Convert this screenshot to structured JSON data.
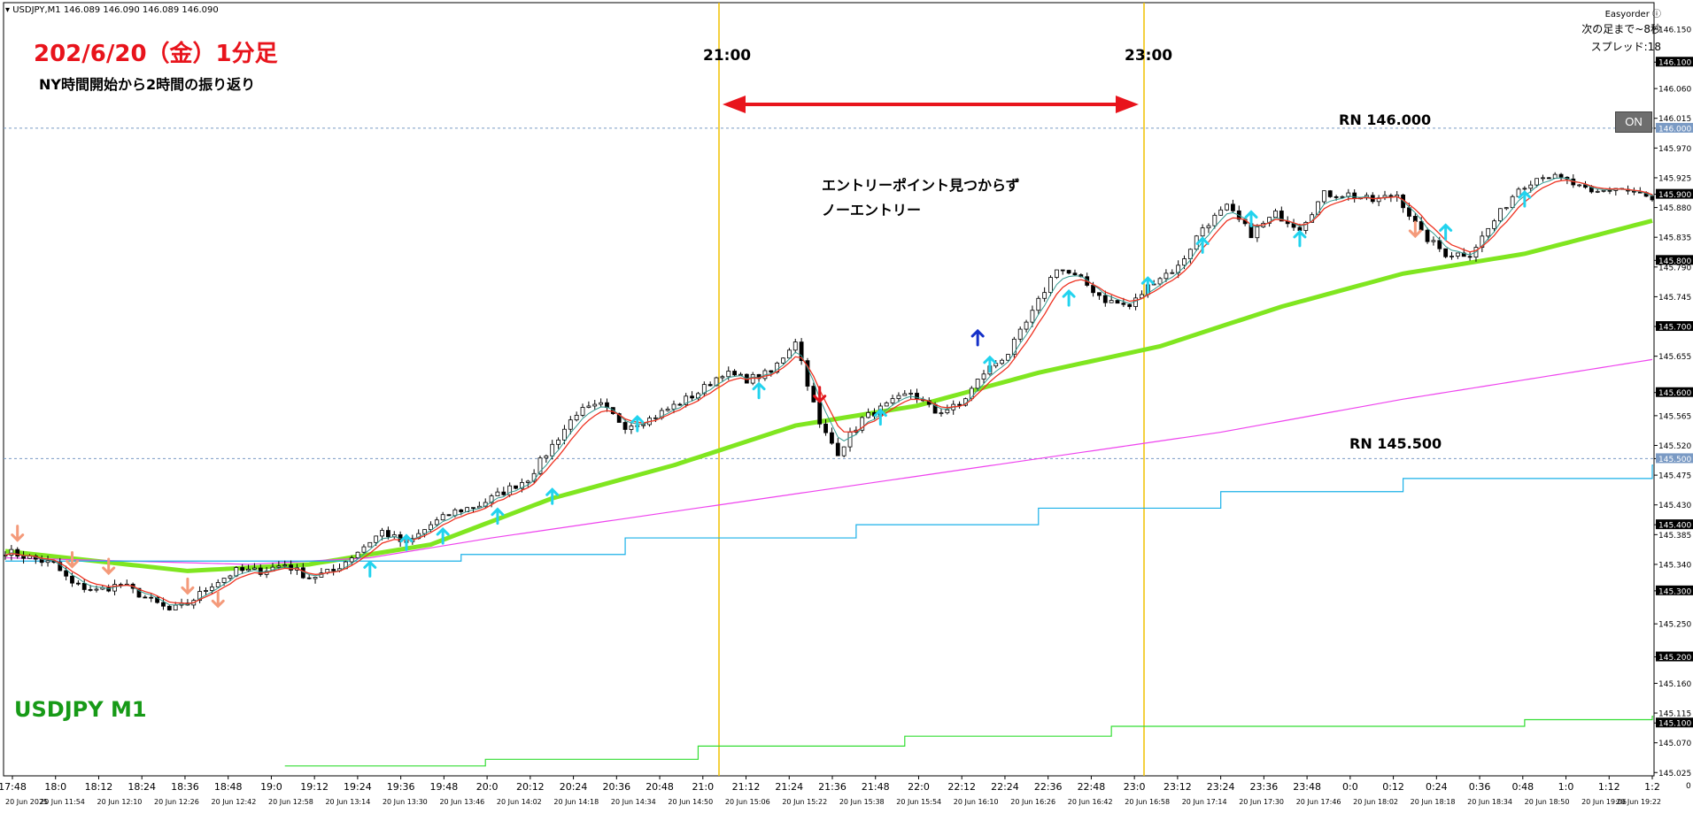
{
  "header": {
    "symbol_info": "USDJPY,M1",
    "ohlc": "146.089 146.090 146.089 146.090"
  },
  "annotations": {
    "title": "202/6/20（金）1分足",
    "subtitle": "NY時間開始から2時間の振り返り",
    "hour_1": "21:00",
    "hour_2": "23:00",
    "note_line1": "エントリーポイント見つからず",
    "note_line2": "ノーエントリー",
    "rn_upper": "RN 146.000",
    "rn_lower": "RN 145.500",
    "symbol_label": "USDJPY M1"
  },
  "top_right": {
    "easyorder": "Easyorder",
    "countdown": "次の足まで~8秒",
    "spread": "スプレッド:18",
    "on_button": "ON"
  },
  "colors": {
    "title": "#e8141c",
    "symbol_label": "#179a17",
    "ma_thick": "#80e620",
    "ma_magenta": "#ee44ee",
    "ma_cyan": "#1ab0e8",
    "ma_green_step": "#33dd33",
    "ma_red": "#ee3322",
    "ma_teal": "#33998f",
    "vline": "#f0c000",
    "arrow": "#e8141c",
    "up_signal": "#22d3ee",
    "down_signal": "#f49a7a"
  },
  "chart_data": {
    "type": "candlestick",
    "symbol": "USDJPY",
    "timeframe": "M1",
    "ylim": [
      145.02,
      146.19
    ],
    "y_ticks": [
      "146.150",
      "146.100",
      "146.060",
      "146.015",
      "146.000",
      "145.970",
      "145.925",
      "145.900",
      "145.880",
      "145.835",
      "145.800",
      "145.790",
      "145.745",
      "145.700",
      "145.655",
      "145.600",
      "145.565",
      "145.520",
      "145.500",
      "145.475",
      "145.430",
      "145.400",
      "145.385",
      "145.340",
      "145.300",
      "145.250",
      "145.200",
      "145.160",
      "145.115",
      "145.100",
      "145.070",
      "145.025"
    ],
    "y_tick_highlighted": [
      "146.100",
      "146.000",
      "145.900",
      "145.800",
      "145.700",
      "145.600",
      "145.500",
      "145.400",
      "145.300",
      "145.200",
      "145.100"
    ],
    "x_ticks_time": [
      "17:48",
      "18:0",
      "18:12",
      "18:24",
      "18:36",
      "18:48",
      "19:0",
      "19:12",
      "19:24",
      "19:36",
      "19:48",
      "20:0",
      "20:12",
      "20:24",
      "20:36",
      "20:48",
      "21:0",
      "21:12",
      "21:24",
      "21:36",
      "21:48",
      "22:0",
      "22:12",
      "22:24",
      "22:36",
      "22:48",
      "23:0",
      "23:12",
      "23:24",
      "23:36",
      "23:48",
      "0:0",
      "0:12",
      "0:24",
      "0:36",
      "0:48",
      "1:0",
      "1:12",
      "1:2"
    ],
    "x_ticks_date": [
      "20 Jun 2025",
      "20 Jun 11:54",
      "20 Jun 12:10",
      "20 Jun 12:26",
      "20 Jun 12:42",
      "20 Jun 12:58",
      "20 Jun 13:14",
      "20 Jun 13:30",
      "20 Jun 13:46",
      "20 Jun 14:02",
      "20 Jun 14:18",
      "20 Jun 14:34",
      "20 Jun 14:50",
      "20 Jun 15:06",
      "20 Jun 15:22",
      "20 Jun 15:38",
      "20 Jun 15:54",
      "20 Jun 16:10",
      "20 Jun 16:26",
      "20 Jun 16:42",
      "20 Jun 16:58",
      "20 Jun 17:14",
      "20 Jun 17:30",
      "20 Jun 17:46",
      "20 Jun 18:02",
      "20 Jun 18:18",
      "20 Jun 18:34",
      "20 Jun 18:50",
      "20 Jun 19:06",
      "20 Jun 19:22"
    ],
    "round_numbers": [
      146.0,
      145.5
    ],
    "vertical_markers": [
      "21:00",
      "23:00"
    ],
    "price_path": [
      [
        0,
        145.36
      ],
      [
        4,
        145.35
      ],
      [
        8,
        145.34
      ],
      [
        11,
        145.31
      ],
      [
        15,
        145.3
      ],
      [
        19,
        145.31
      ],
      [
        23,
        145.29
      ],
      [
        27,
        145.27
      ],
      [
        30,
        145.28
      ],
      [
        34,
        145.31
      ],
      [
        38,
        145.33
      ],
      [
        42,
        145.33
      ],
      [
        46,
        145.34
      ],
      [
        50,
        145.32
      ],
      [
        54,
        145.33
      ],
      [
        58,
        145.36
      ],
      [
        62,
        145.39
      ],
      [
        66,
        145.37
      ],
      [
        70,
        145.4
      ],
      [
        74,
        145.42
      ],
      [
        78,
        145.43
      ],
      [
        82,
        145.45
      ],
      [
        86,
        145.47
      ],
      [
        90,
        145.52
      ],
      [
        94,
        145.57
      ],
      [
        98,
        145.58
      ],
      [
        102,
        145.55
      ],
      [
        106,
        145.56
      ],
      [
        110,
        145.58
      ],
      [
        114,
        145.6
      ],
      [
        118,
        145.63
      ],
      [
        122,
        145.62
      ],
      [
        126,
        145.63
      ],
      [
        130,
        145.68
      ],
      [
        134,
        145.55
      ],
      [
        137,
        145.51
      ],
      [
        141,
        145.56
      ],
      [
        145,
        145.58
      ],
      [
        149,
        145.6
      ],
      [
        153,
        145.57
      ],
      [
        157,
        145.58
      ],
      [
        161,
        145.63
      ],
      [
        165,
        145.66
      ],
      [
        169,
        145.72
      ],
      [
        173,
        145.79
      ],
      [
        177,
        145.77
      ],
      [
        181,
        145.74
      ],
      [
        185,
        145.73
      ],
      [
        189,
        145.77
      ],
      [
        193,
        145.79
      ],
      [
        197,
        145.85
      ],
      [
        201,
        145.88
      ],
      [
        205,
        145.84
      ],
      [
        209,
        145.87
      ],
      [
        213,
        145.85
      ],
      [
        217,
        145.9
      ],
      [
        221,
        145.9
      ],
      [
        225,
        145.89
      ],
      [
        229,
        145.9
      ],
      [
        233,
        145.84
      ],
      [
        237,
        145.81
      ],
      [
        241,
        145.81
      ],
      [
        245,
        145.86
      ],
      [
        249,
        145.91
      ],
      [
        253,
        145.93
      ],
      [
        257,
        145.92
      ],
      [
        261,
        145.9
      ],
      [
        265,
        145.91
      ],
      [
        269,
        145.9
      ],
      [
        271,
        145.89
      ]
    ],
    "series": [
      {
        "name": "",
        "style": "thick-green",
        "points": [
          [
            0,
            145.36
          ],
          [
            30,
            145.33
          ],
          [
            50,
            145.34
          ],
          [
            70,
            145.37
          ],
          [
            90,
            145.44
          ],
          [
            110,
            145.49
          ],
          [
            130,
            145.55
          ],
          [
            150,
            145.58
          ],
          [
            170,
            145.63
          ],
          [
            190,
            145.67
          ],
          [
            210,
            145.73
          ],
          [
            230,
            145.78
          ],
          [
            250,
            145.81
          ],
          [
            271,
            145.86
          ]
        ]
      },
      {
        "name": "",
        "style": "thin-magenta",
        "points": [
          [
            0,
            145.35
          ],
          [
            40,
            145.34
          ],
          [
            60,
            145.35
          ],
          [
            80,
            145.38
          ],
          [
            110,
            145.42
          ],
          [
            140,
            145.46
          ],
          [
            170,
            145.5
          ],
          [
            200,
            145.54
          ],
          [
            230,
            145.59
          ],
          [
            271,
            145.65
          ]
        ]
      },
      {
        "name": "",
        "style": "step-cyan",
        "points": [
          [
            0,
            145.345
          ],
          [
            60,
            145.345
          ],
          [
            75,
            145.355
          ],
          [
            102,
            145.38
          ],
          [
            140,
            145.4
          ],
          [
            170,
            145.425
          ],
          [
            200,
            145.45
          ],
          [
            230,
            145.47
          ],
          [
            271,
            145.49
          ]
        ]
      },
      {
        "name": "",
        "style": "step-green-low",
        "points": [
          [
            46,
            145.035
          ],
          [
            79,
            145.045
          ],
          [
            114,
            145.065
          ],
          [
            148,
            145.08
          ],
          [
            182,
            145.095
          ],
          [
            216,
            145.095
          ],
          [
            250,
            145.105
          ],
          [
            271,
            145.11
          ]
        ]
      }
    ],
    "signals": [
      {
        "type": "down",
        "i": 2,
        "p": 145.39
      },
      {
        "type": "down",
        "i": 11,
        "p": 145.35
      },
      {
        "type": "down",
        "i": 17,
        "p": 145.34
      },
      {
        "type": "down",
        "i": 30,
        "p": 145.31
      },
      {
        "type": "down",
        "i": 35,
        "p": 145.29
      },
      {
        "type": "up",
        "i": 60,
        "p": 145.33
      },
      {
        "type": "up",
        "i": 66,
        "p": 145.37
      },
      {
        "type": "up",
        "i": 72,
        "p": 145.38
      },
      {
        "type": "up",
        "i": 81,
        "p": 145.41
      },
      {
        "type": "up",
        "i": 90,
        "p": 145.44
      },
      {
        "type": "up",
        "i": 104,
        "p": 145.55
      },
      {
        "type": "up",
        "i": 124,
        "p": 145.6
      },
      {
        "type": "down-red",
        "i": 134,
        "p": 145.6
      },
      {
        "type": "up",
        "i": 144,
        "p": 145.56
      },
      {
        "type": "up-blue",
        "i": 160,
        "p": 145.68
      },
      {
        "type": "up",
        "i": 162,
        "p": 145.64
      },
      {
        "type": "up",
        "i": 175,
        "p": 145.74
      },
      {
        "type": "up",
        "i": 188,
        "p": 145.76
      },
      {
        "type": "up",
        "i": 197,
        "p": 145.82
      },
      {
        "type": "up",
        "i": 205,
        "p": 145.86
      },
      {
        "type": "up",
        "i": 213,
        "p": 145.83
      },
      {
        "type": "down",
        "i": 232,
        "p": 145.85
      },
      {
        "type": "up",
        "i": 237,
        "p": 145.84
      },
      {
        "type": "up",
        "i": 250,
        "p": 145.89
      }
    ],
    "grid": false,
    "legend": "none"
  }
}
